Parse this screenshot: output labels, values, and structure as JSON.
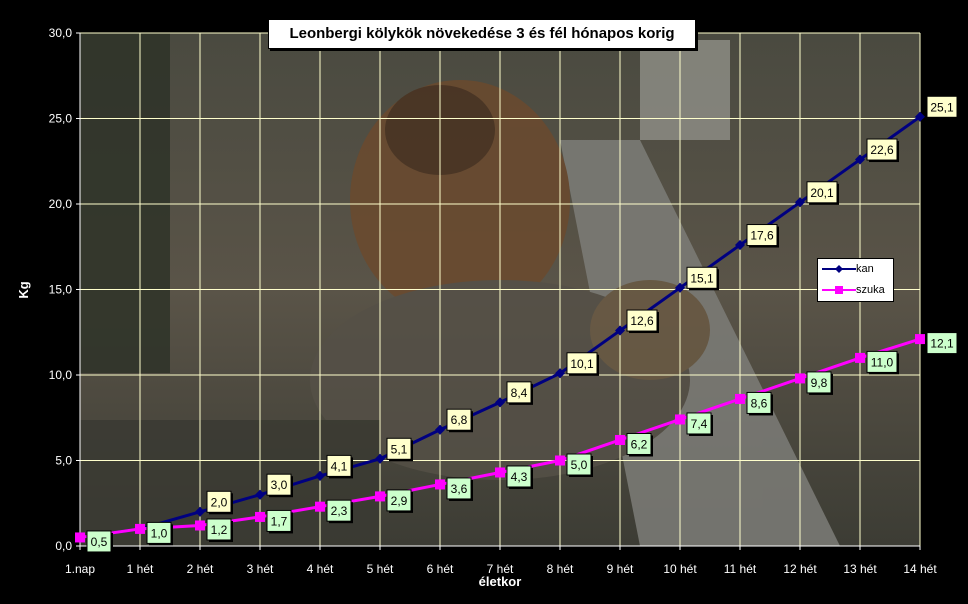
{
  "chart_data": {
    "type": "line",
    "title": "Leonbergi kölykök növekedése 3 és fél hónapos korig",
    "xlabel": "életkor",
    "ylabel": "Kg",
    "categories": [
      "1.nap",
      "1 hét",
      "2 hét",
      "3 hét",
      "4 hét",
      "5 hét",
      "6 hét",
      "7 hét",
      "8 hét",
      "9 hét",
      "10 hét",
      "11 hét",
      "12 hét",
      "13 hét",
      "14 hét"
    ],
    "ylim": [
      0,
      30
    ],
    "yticks": [
      "0,0",
      "5,0",
      "10,0",
      "15,0",
      "20,0",
      "25,0",
      "30,0"
    ],
    "grid": true,
    "legend_position": "right",
    "series": [
      {
        "name": "kan",
        "color": "#000080",
        "marker": "diamond",
        "values": [
          0.5,
          1.0,
          2.0,
          3.0,
          4.1,
          5.1,
          6.8,
          8.4,
          10.1,
          12.6,
          15.1,
          17.6,
          20.1,
          22.6,
          25.1
        ],
        "labels": [
          "",
          "",
          "2,0",
          "3,0",
          "4,1",
          "5,1",
          "6,8",
          "8,4",
          "10,1",
          "12,6",
          "15,1",
          "17,6",
          "20,1",
          "22,6",
          "25,1"
        ],
        "label_bg": "#ffffcc"
      },
      {
        "name": "szuka",
        "color": "#ff00ff",
        "marker": "square",
        "values": [
          0.5,
          1.0,
          1.2,
          1.7,
          2.3,
          2.9,
          3.6,
          4.3,
          5.0,
          6.2,
          7.4,
          8.6,
          9.8,
          11.0,
          12.1
        ],
        "labels": [
          "0,5",
          "1,0",
          "1,2",
          "1,7",
          "2,3",
          "2,9",
          "3,6",
          "4,3",
          "5,0",
          "6,2",
          "7,4",
          "8,6",
          "9,8",
          "11,0",
          "12,1"
        ],
        "label_bg": "#ccffcc"
      }
    ]
  }
}
